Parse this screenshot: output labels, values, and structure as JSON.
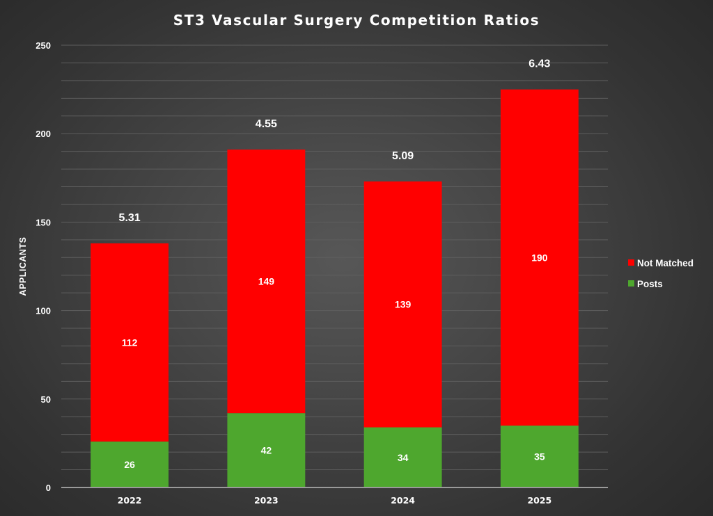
{
  "chart_data": {
    "type": "bar",
    "stacked": true,
    "title": "ST3 Vascular Surgery Competition Ratios",
    "xlabel": "",
    "ylabel": "APPLICANTS",
    "categories": [
      "2022",
      "2023",
      "2024",
      "2025"
    ],
    "series": [
      {
        "name": "Posts",
        "values": [
          26,
          42,
          34,
          35
        ],
        "color": "#4EA72E"
      },
      {
        "name": "Not Matched",
        "values": [
          112,
          149,
          139,
          190
        ],
        "color": "#FF0000"
      }
    ],
    "total_annotations": [
      "5.31",
      "4.55",
      "5.09",
      "6.43"
    ],
    "ylim": [
      0,
      250
    ],
    "yticks": [
      0,
      50,
      100,
      150,
      200,
      250
    ],
    "minor_grid_step": 10,
    "grid": true,
    "legend": {
      "position": "right",
      "entries": [
        {
          "label": "Not Matched",
          "color": "#FF0000"
        },
        {
          "label": "Posts",
          "color": "#4EA72E"
        }
      ]
    }
  }
}
